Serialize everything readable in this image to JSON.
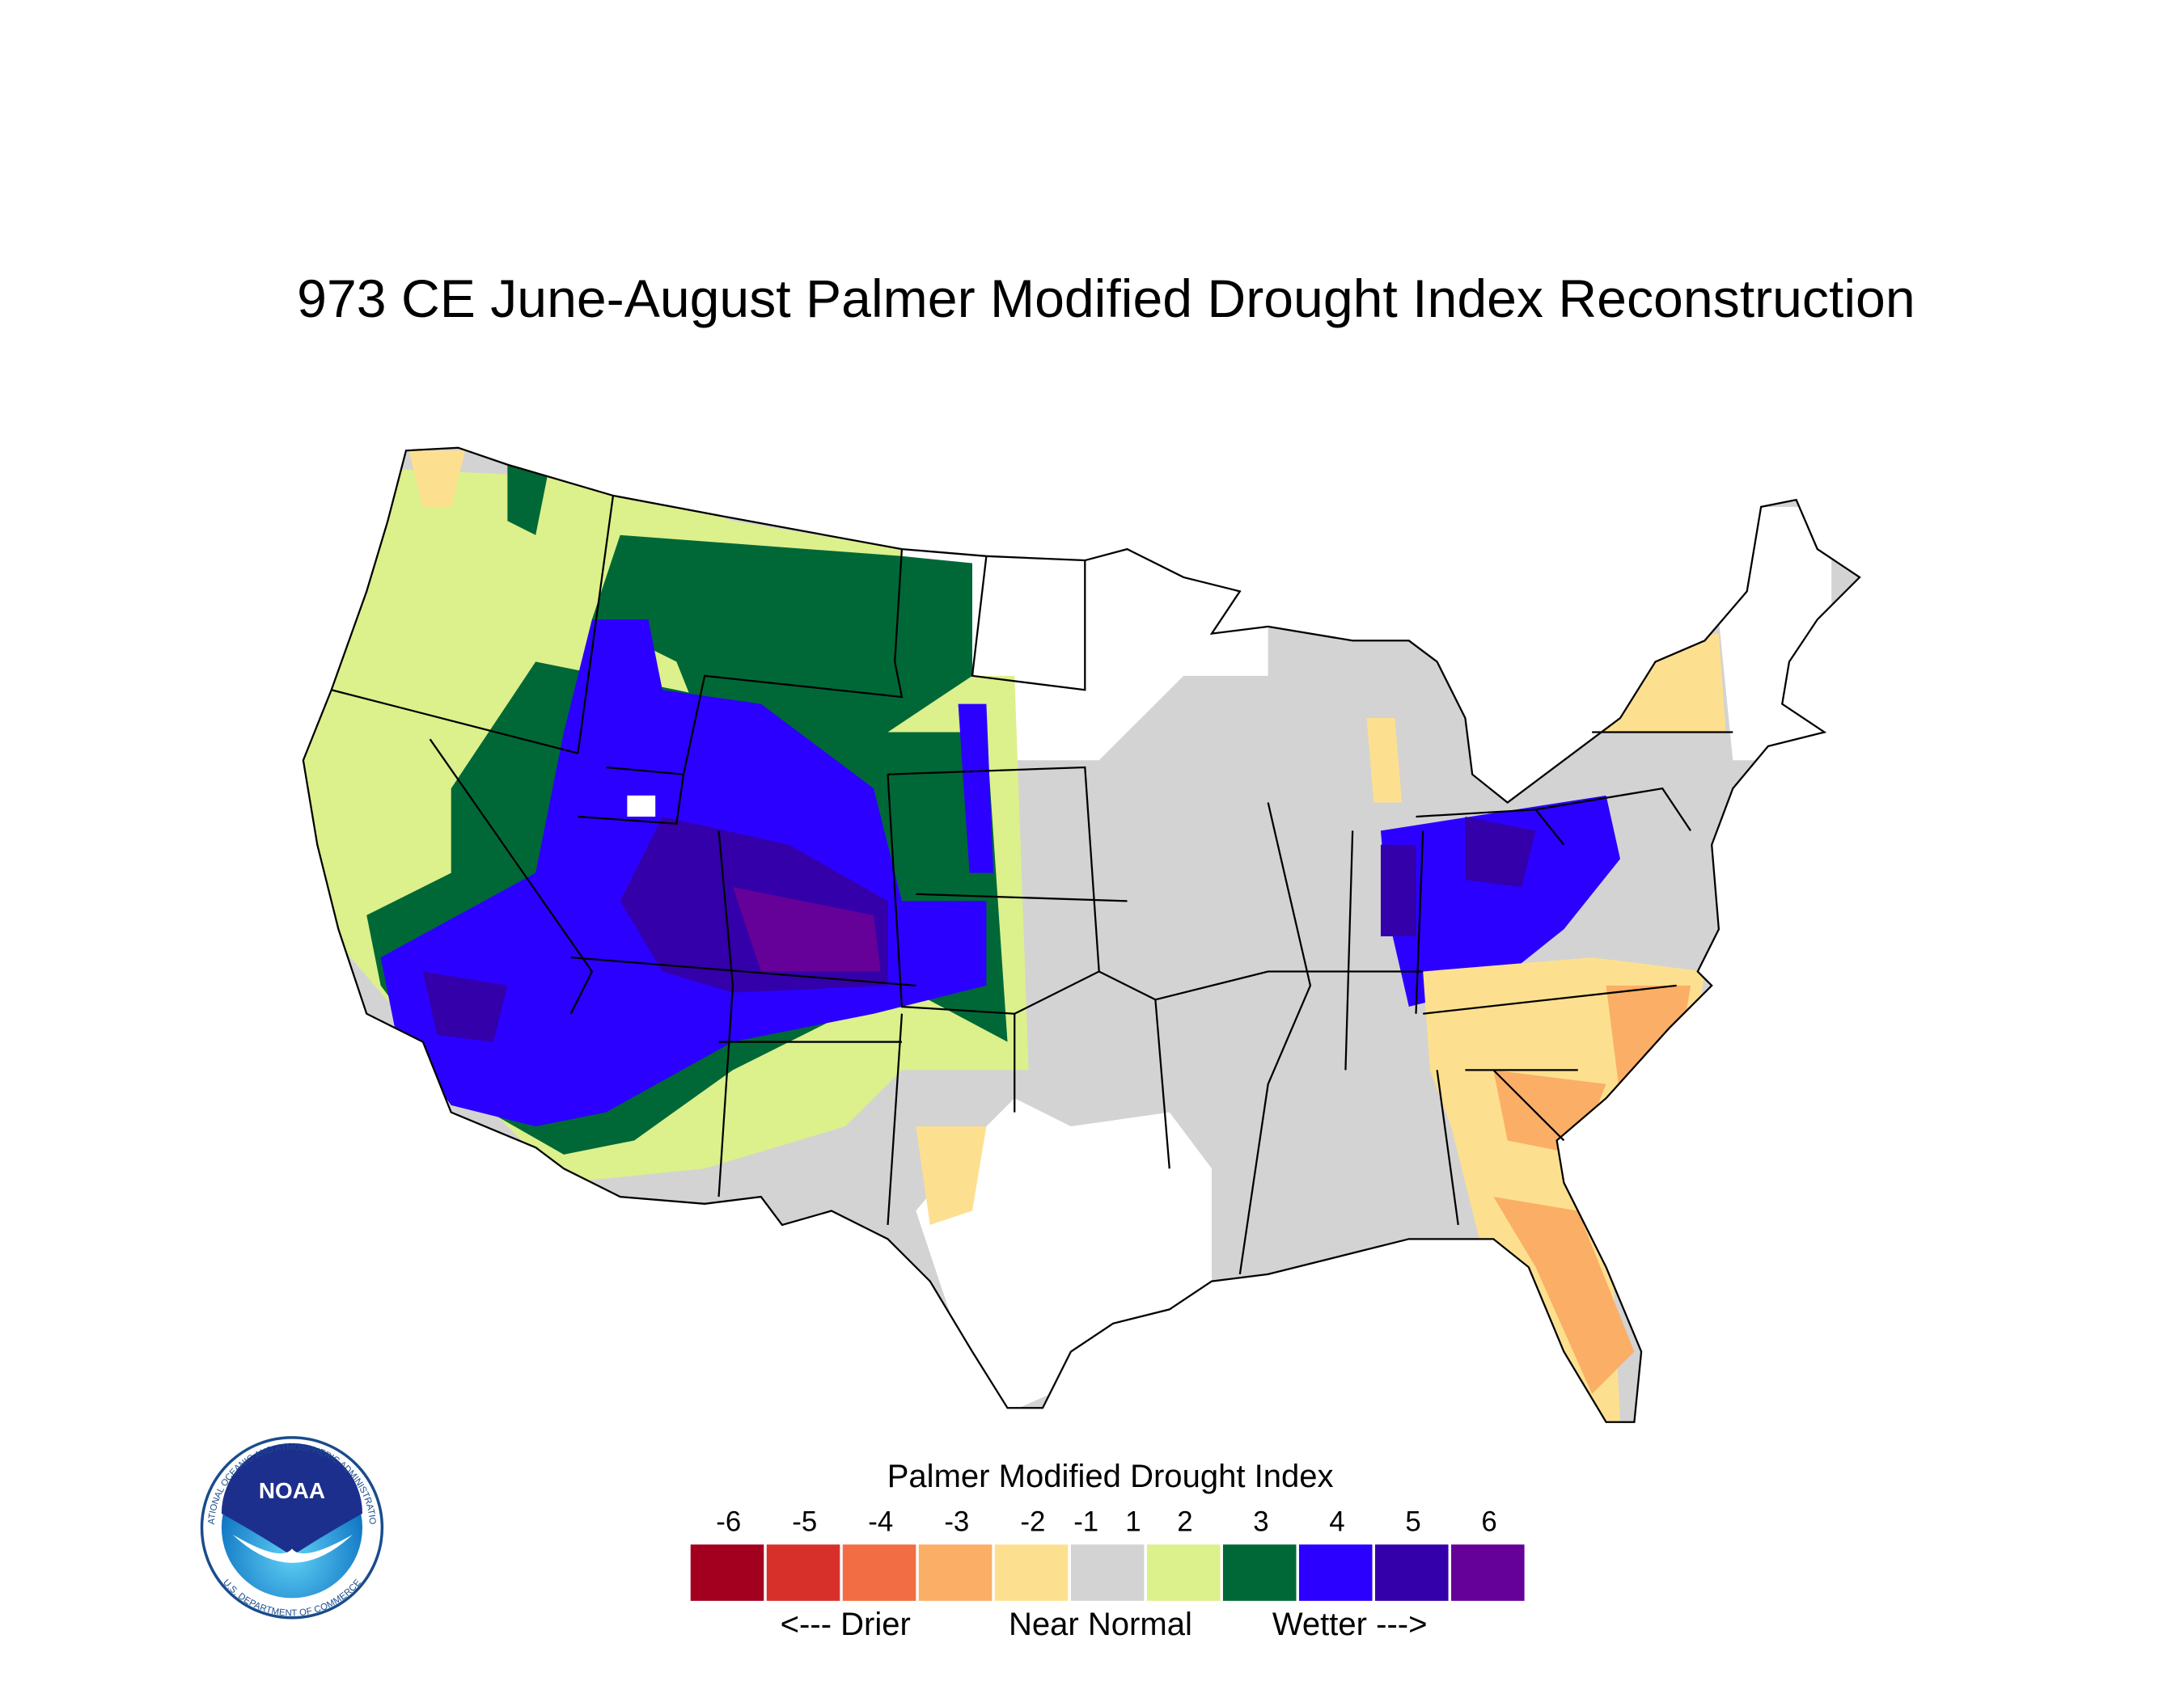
{
  "title": "973 CE  June-August  Palmer Modified Drought Index Reconstruction",
  "legend": {
    "title": "Palmer Modified Drought Index",
    "ticks": [
      -6,
      -5,
      -4,
      -3,
      -2,
      -1,
      1,
      2,
      3,
      4,
      5,
      6
    ],
    "colors": [
      "#a3001f",
      "#d7302a",
      "#f26d43",
      "#fbae65",
      "#fde08f",
      "#d3d3d3",
      "#dcf08c",
      "#006837",
      "#2b00ff",
      "#3300aa",
      "#650099"
    ],
    "labels": [
      "<--- Drier",
      "Near Normal",
      "Wetter --->"
    ]
  },
  "logo": {
    "name": "NOAA",
    "ring_top": "NATIONAL OCEANIC AND ATMOSPHERIC ADMINISTRATION",
    "ring_bottom": "U.S. DEPARTMENT OF COMMERCE"
  }
}
